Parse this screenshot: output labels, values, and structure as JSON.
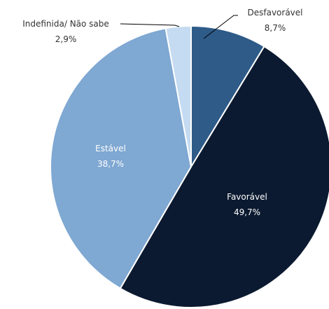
{
  "chart_data": {
    "type": "pie",
    "start_angle_deg": 0,
    "direction": "clockwise",
    "slices": [
      {
        "label": "Desfavorável",
        "value": 8.7,
        "value_label": "8,7%",
        "color": "#2e5b88"
      },
      {
        "label": "Favorável",
        "value": 49.7,
        "value_label": "49,7%",
        "color": "#0b1a30"
      },
      {
        "label": "Estável",
        "value": 38.7,
        "value_label": "38,7%",
        "color": "#7fa8d2"
      },
      {
        "label": "Indefinida/ Não sabe",
        "value": 2.9,
        "value_label": "2,9%",
        "color": "#c4dbf1"
      }
    ]
  }
}
